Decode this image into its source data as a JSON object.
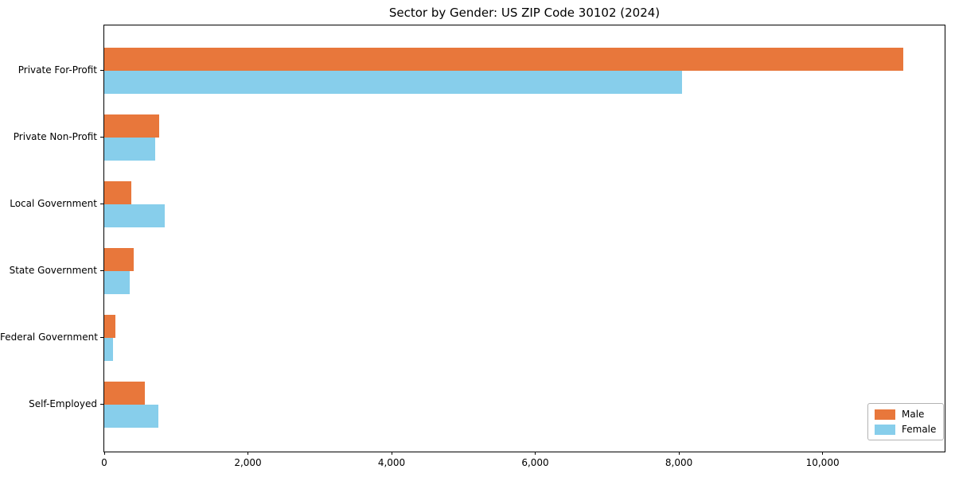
{
  "chart_data": {
    "type": "bar",
    "orientation": "horizontal",
    "title": "Sector by Gender: US ZIP Code 30102 (2024)",
    "categories": [
      "Private For-Profit",
      "Private Non-Profit",
      "Local Government",
      "State Government",
      "Federal Government",
      "Self-Employed"
    ],
    "series": [
      {
        "name": "Male",
        "color": "#e8773b",
        "values": [
          11120,
          760,
          380,
          410,
          160,
          570
        ]
      },
      {
        "name": "Female",
        "color": "#87ceeb",
        "values": [
          8040,
          710,
          840,
          355,
          120,
          755
        ]
      }
    ],
    "xlabel": "",
    "ylabel": "",
    "xlim": [
      0,
      11700
    ],
    "xticks": [
      0,
      2000,
      4000,
      6000,
      8000,
      10000
    ],
    "xtick_labels": [
      "0",
      "2,000",
      "4,000",
      "6,000",
      "8,000",
      "10,000"
    ],
    "legend_position": "lower right",
    "grid": false,
    "background_color": "#ffffff",
    "spine_color": "#000000"
  }
}
